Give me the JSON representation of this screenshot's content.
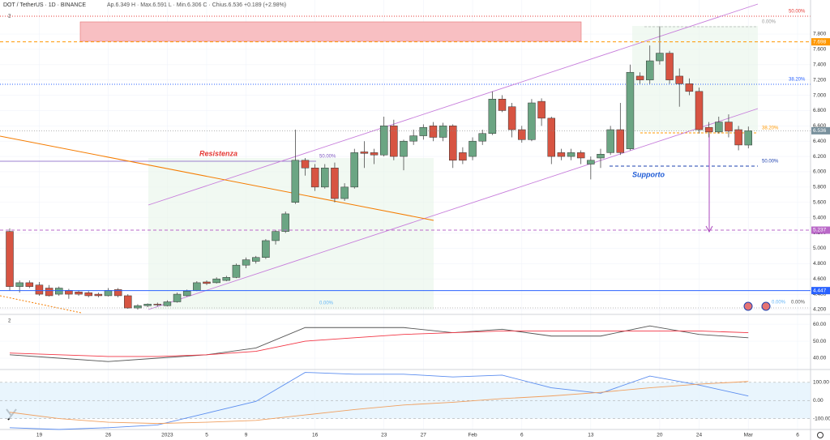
{
  "chart_data": [
    {
      "type": "candlestick",
      "title": "DOT / TetherUS · 1D · BINANCE",
      "subtitle": "Ap.6.349 H · Max.6.591 L · Min.6.306 C · Chius.6.536 +0.189 (+2.98%)",
      "panel_label": "2",
      "categories": [
        null,
        null,
        null,
        "19",
        null,
        null,
        null,
        null,
        null,
        null,
        "26",
        null,
        null,
        null,
        null,
        null,
        "2023",
        null,
        null,
        null,
        "5",
        null,
        null,
        null,
        "9",
        null,
        null,
        null,
        null,
        null,
        null,
        "16",
        null,
        null,
        null,
        null,
        null,
        null,
        "23",
        null,
        null,
        null,
        "27",
        null,
        null,
        null,
        null,
        "Feb",
        null,
        null,
        null,
        null,
        "6",
        null,
        null,
        null,
        null,
        null,
        null,
        "13",
        null,
        null,
        null,
        null,
        null,
        null,
        "20",
        null,
        null,
        null,
        "24",
        null,
        null,
        null,
        null,
        "Mar",
        null,
        null,
        null,
        null,
        "6"
      ],
      "open": [
        5.22,
        4.5,
        4.55,
        4.52,
        4.48,
        4.4,
        4.45,
        4.43,
        4.42,
        4.4,
        4.38,
        4.46,
        4.38,
        4.22,
        4.25,
        4.27,
        4.25,
        4.3,
        4.38,
        4.45,
        4.56,
        4.55,
        4.58,
        4.62,
        4.78,
        4.83,
        4.88,
        5.1,
        5.22,
        5.6,
        6.15,
        6.05,
        5.8,
        6.05,
        5.65,
        5.8,
        6.26,
        6.25,
        6.22,
        6.6,
        6.2,
        6.4,
        6.47,
        6.6,
        6.45,
        6.6,
        6.25,
        6.2,
        6.4,
        6.5,
        6.95,
        6.85,
        6.55,
        6.42,
        6.92,
        6.7,
        6.25,
        6.2,
        6.25,
        6.1,
        6.18,
        6.25,
        6.55,
        6.3,
        7.25,
        7.2,
        7.45,
        7.55,
        7.25,
        7.15,
        7.05,
        6.58,
        6.52,
        6.65,
        6.55,
        6.349,
        null,
        null,
        null,
        null,
        null
      ],
      "high": [
        5.26,
        4.58,
        4.58,
        4.56,
        4.52,
        4.5,
        4.47,
        4.45,
        4.44,
        4.42,
        4.48,
        4.48,
        4.4,
        4.27,
        4.28,
        4.29,
        4.32,
        4.42,
        4.46,
        4.57,
        4.58,
        4.62,
        4.64,
        4.8,
        4.88,
        4.9,
        5.12,
        5.24,
        5.48,
        6.55,
        6.18,
        6.1,
        6.1,
        6.12,
        5.85,
        6.3,
        6.4,
        6.3,
        6.72,
        6.68,
        6.42,
        6.55,
        6.62,
        6.65,
        6.64,
        6.62,
        6.32,
        6.45,
        6.55,
        7.05,
        7.0,
        6.9,
        6.6,
        6.95,
        6.96,
        6.72,
        6.3,
        6.3,
        6.28,
        6.2,
        6.3,
        6.6,
        6.9,
        7.4,
        7.3,
        7.65,
        7.9,
        7.58,
        7.35,
        7.22,
        7.1,
        6.65,
        6.72,
        6.75,
        6.6,
        6.591,
        null,
        null,
        null,
        null,
        null
      ],
      "low": [
        4.45,
        4.42,
        4.48,
        4.38,
        4.37,
        4.38,
        4.34,
        4.38,
        4.36,
        4.36,
        4.37,
        4.36,
        4.21,
        4.2,
        4.23,
        4.24,
        4.24,
        4.29,
        4.37,
        4.44,
        4.52,
        4.54,
        4.57,
        4.61,
        4.74,
        4.8,
        4.86,
        5.05,
        5.2,
        5.58,
        5.95,
        5.75,
        5.78,
        5.6,
        5.62,
        5.78,
        6.05,
        6.1,
        6.2,
        6.15,
        6.02,
        6.35,
        6.42,
        6.4,
        6.4,
        6.05,
        6.1,
        6.15,
        6.35,
        6.48,
        6.78,
        6.45,
        6.38,
        6.4,
        6.6,
        6.1,
        6.15,
        6.15,
        6.1,
        5.9,
        6.05,
        6.22,
        6.22,
        6.28,
        7.15,
        7.15,
        7.4,
        7.15,
        6.85,
        7.0,
        6.5,
        6.45,
        6.5,
        6.45,
        6.28,
        6.306,
        null,
        null,
        null,
        null,
        null
      ],
      "close": [
        4.5,
        4.55,
        4.5,
        4.4,
        4.38,
        4.48,
        4.4,
        4.4,
        4.38,
        4.38,
        4.45,
        4.38,
        4.22,
        4.25,
        4.27,
        4.26,
        4.3,
        4.4,
        4.44,
        4.55,
        4.54,
        4.6,
        4.62,
        4.78,
        4.85,
        4.88,
        5.1,
        5.22,
        5.45,
        6.15,
        6.05,
        5.8,
        6.05,
        5.65,
        5.8,
        6.25,
        6.24,
        6.22,
        6.6,
        6.2,
        6.4,
        6.47,
        6.58,
        6.45,
        6.6,
        6.15,
        6.15,
        6.4,
        6.5,
        6.95,
        6.8,
        6.55,
        6.42,
        6.9,
        6.7,
        6.2,
        6.2,
        6.25,
        6.18,
        6.15,
        6.23,
        6.55,
        6.25,
        7.3,
        7.2,
        7.45,
        7.55,
        7.2,
        7.15,
        7.05,
        6.55,
        6.52,
        6.65,
        6.53,
        6.35,
        6.536,
        null,
        null,
        null,
        null,
        null
      ],
      "up_color": "#6ba583",
      "down_color": "#d75442",
      "ylim": [
        4.136,
        8.16
      ],
      "yticks": [
        {
          "value": 4.2,
          "label": "4.200"
        },
        {
          "value": 4.4,
          "label": "4.400"
        },
        {
          "value": 4.6,
          "label": "4.600"
        },
        {
          "value": 4.8,
          "label": "4.800"
        },
        {
          "value": 5.0,
          "label": "5.000"
        },
        {
          "value": 5.2,
          "label": "5.200"
        },
        {
          "value": 5.4,
          "label": "5.400"
        },
        {
          "value": 5.6,
          "label": "5.600"
        },
        {
          "value": 5.8,
          "label": "5.800"
        },
        {
          "value": 6.0,
          "label": "6.000"
        },
        {
          "value": 6.2,
          "label": "6.200"
        },
        {
          "value": 6.4,
          "label": "6.400"
        },
        {
          "value": 6.6,
          "label": "6.600"
        },
        {
          "value": 6.8,
          "label": "6.800"
        },
        {
          "value": 7.0,
          "label": "7.000"
        },
        {
          "value": 7.2,
          "label": "7.200"
        },
        {
          "value": 7.4,
          "label": "7.400"
        },
        {
          "value": 7.6,
          "label": "7.600"
        },
        {
          "value": 7.8,
          "label": "7.800"
        }
      ],
      "levels": [
        {
          "value": 7.698,
          "color": "#ff9800"
        },
        {
          "value": 5.237,
          "color": "#ba68c8"
        },
        {
          "value": 4.447,
          "color": "#2962ff"
        }
      ],
      "last_price": 6.536,
      "annotations": [
        "Resistenza",
        "Supporto",
        "50.00%",
        "38.20%",
        "0.00%",
        "38.20%",
        "50.00%",
        "50.00%",
        "0.00%",
        "0.00%",
        "0.00%"
      ]
    },
    {
      "type": "line",
      "panel_label": "2",
      "x": [
        0,
        5,
        10,
        15,
        20,
        25,
        30,
        35,
        40,
        45,
        50,
        55,
        60,
        65,
        70,
        75
      ],
      "series": [
        {
          "color": "#555555",
          "values": [
            42,
            40,
            38,
            40,
            42,
            46,
            58,
            58,
            58,
            55,
            57,
            53,
            53,
            59,
            54,
            52
          ]
        },
        {
          "color": "#f23645",
          "values": [
            43,
            42,
            41,
            41,
            42,
            44,
            50,
            52,
            54,
            55,
            56,
            56,
            56,
            56,
            56,
            55
          ]
        }
      ],
      "ylim": [
        33.8,
        64.8
      ],
      "yticks": [
        {
          "value": 60,
          "label": "60.00"
        },
        {
          "value": 50,
          "label": "50.00"
        },
        {
          "value": 40,
          "label": "40.00"
        }
      ]
    },
    {
      "type": "line",
      "x": [
        0,
        5,
        10,
        15,
        20,
        25,
        30,
        35,
        40,
        45,
        50,
        55,
        60,
        65,
        70,
        75
      ],
      "series": [
        {
          "color": "#5b8def",
          "values": [
            -150,
            -160,
            -150,
            -135,
            -70,
            -5,
            155,
            145,
            145,
            130,
            140,
            70,
            40,
            135,
            85,
            25
          ]
        },
        {
          "color": "#f0a060",
          "values": [
            -65,
            -100,
            -120,
            -127,
            -120,
            -110,
            -80,
            -50,
            -25,
            -10,
            10,
            25,
            45,
            70,
            90,
            105
          ]
        }
      ],
      "ylim": [
        -160,
        162
      ],
      "yticks": [
        {
          "value": 100,
          "label": "100.00"
        },
        {
          "value": 0,
          "label": "0.00"
        },
        {
          "value": -100,
          "label": "-100.00"
        }
      ]
    }
  ]
}
